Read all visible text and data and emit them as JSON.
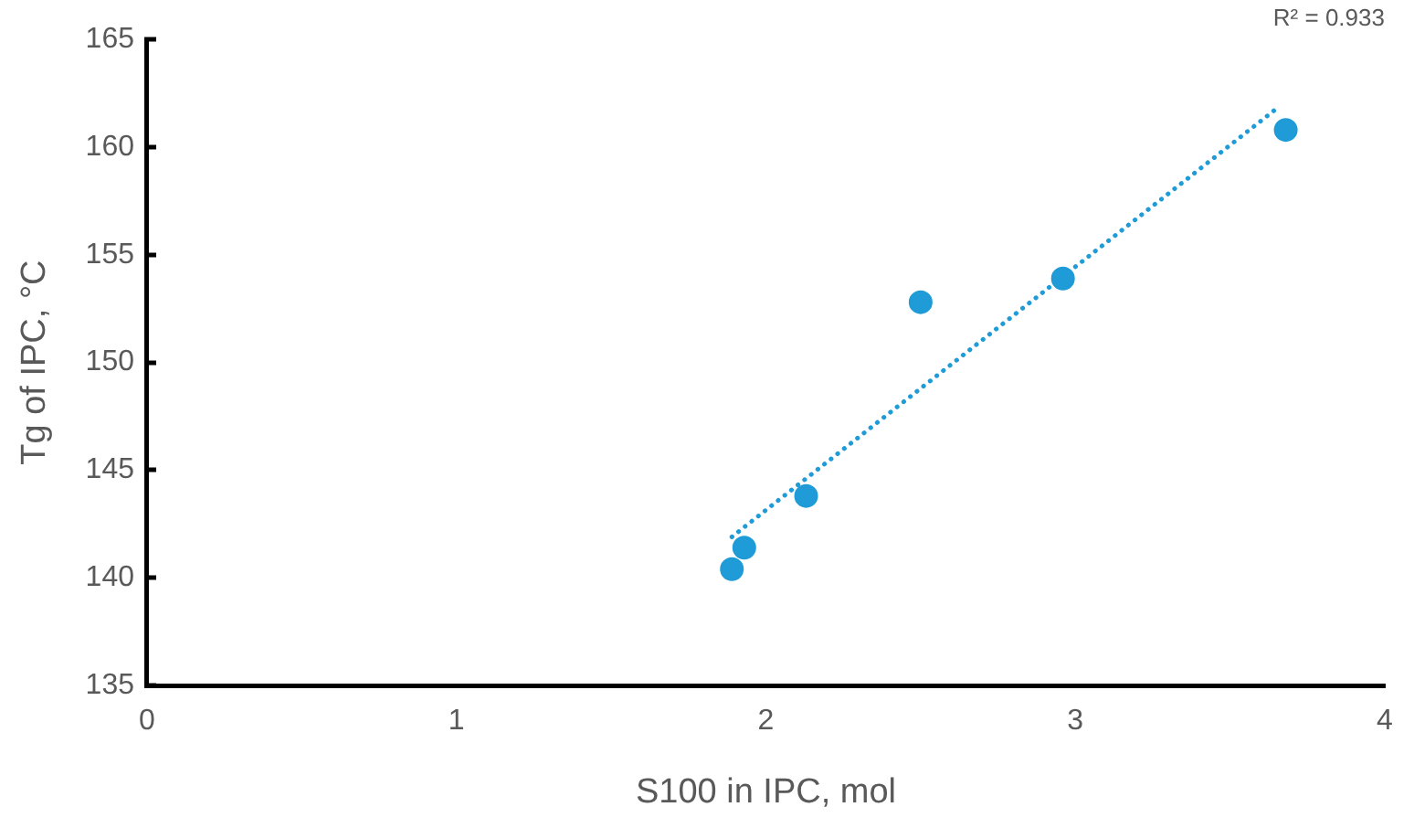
{
  "chart_data": {
    "type": "scatter",
    "xlabel": "S100 in IPC, mol",
    "ylabel": "Tg of IPC, °C",
    "xlim": [
      0,
      4
    ],
    "xticks": [
      0,
      1,
      2,
      3,
      4
    ],
    "ylim": [
      135,
      165
    ],
    "yticks": [
      135,
      140,
      145,
      150,
      155,
      160,
      165
    ],
    "grid": false,
    "legend": false,
    "marker": "circle",
    "annotations": [
      "R² = 0.933"
    ],
    "series": [
      {
        "type": "scatter",
        "color": "#1f9bd7",
        "x": [
          1.89,
          1.93,
          2.13,
          2.5,
          2.96,
          3.68
        ],
        "values": [
          140.4,
          141.4,
          143.8,
          152.8,
          153.9,
          160.8
        ]
      },
      {
        "type": "line",
        "color": "#1f9bd7",
        "line_style": "dotted",
        "marker": "none",
        "x": [
          1.89,
          3.66
        ],
        "values": [
          141.9,
          161.9
        ]
      }
    ]
  }
}
